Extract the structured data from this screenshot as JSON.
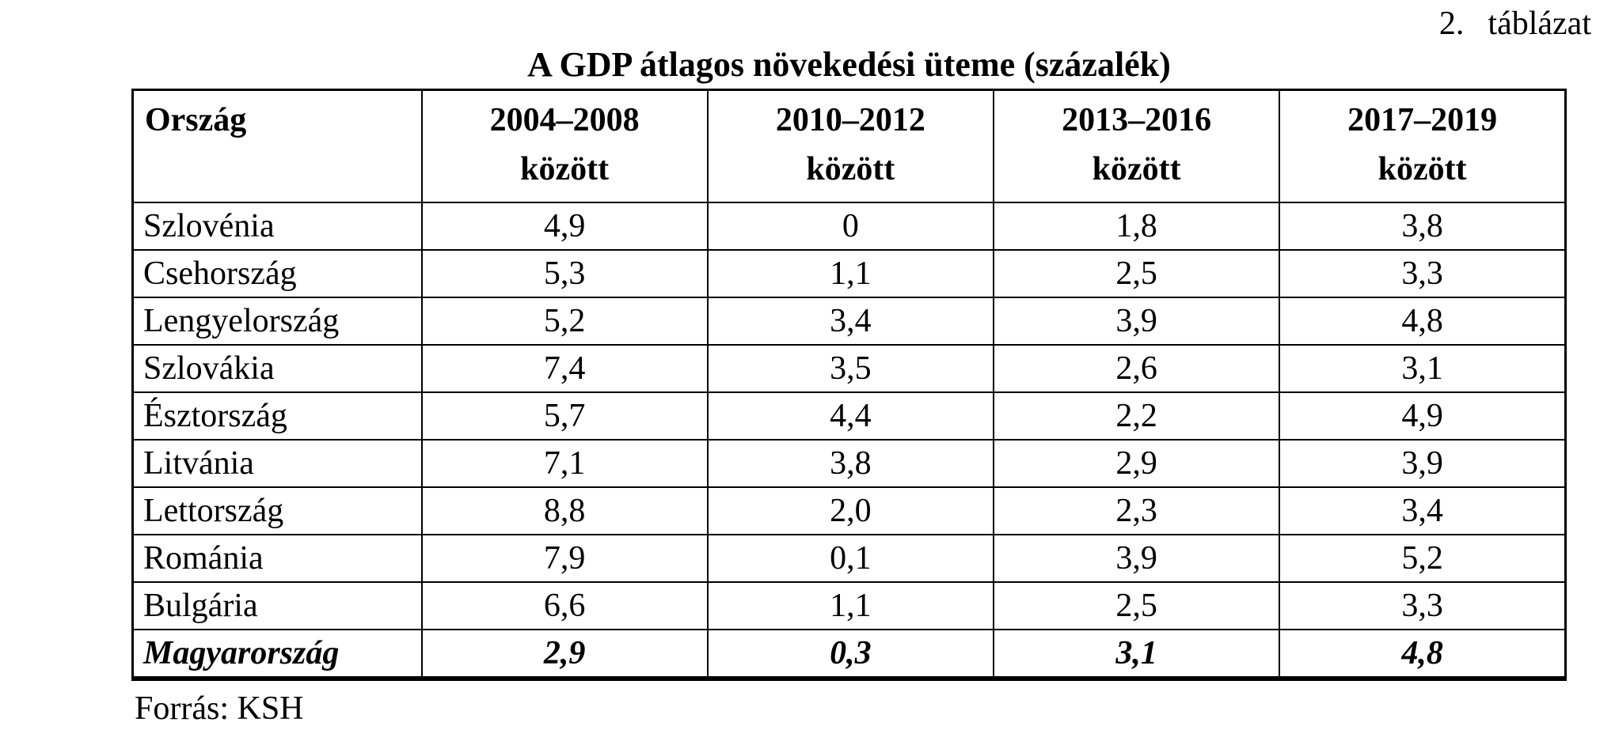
{
  "caption": {
    "number": "2.",
    "label": "táblázat"
  },
  "title": "A GDP átlagos növekedési üteme (százalék)",
  "source": "Forrás: KSH",
  "colors": {
    "text": "#000000",
    "background": "#ffffff",
    "border": "#000000"
  },
  "table": {
    "columns": [
      {
        "title": "Ország",
        "subtitle": ""
      },
      {
        "title": "2004–2008",
        "subtitle": "között"
      },
      {
        "title": "2010–2012",
        "subtitle": "között"
      },
      {
        "title": "2013–2016",
        "subtitle": "között"
      },
      {
        "title": "2017–2019",
        "subtitle": "között"
      }
    ],
    "rows": [
      {
        "country": "Szlovénia",
        "values": [
          "4,9",
          "0",
          "1,8",
          "3,8"
        ]
      },
      {
        "country": "Csehország",
        "values": [
          "5,3",
          "1,1",
          "2,5",
          "3,3"
        ]
      },
      {
        "country": "Lengyelország",
        "values": [
          "5,2",
          "3,4",
          "3,9",
          "4,8"
        ]
      },
      {
        "country": "Szlovákia",
        "values": [
          "7,4",
          "3,5",
          "2,6",
          "3,1"
        ]
      },
      {
        "country": "Észtország",
        "values": [
          "5,7",
          "4,4",
          "2,2",
          "4,9"
        ]
      },
      {
        "country": "Litvánia",
        "values": [
          "7,1",
          "3,8",
          "2,9",
          "3,9"
        ]
      },
      {
        "country": "Lettország",
        "values": [
          "8,8",
          "2,0",
          "2,3",
          "3,4"
        ]
      },
      {
        "country": "Románia",
        "values": [
          "7,9",
          "0,1",
          "3,9",
          "5,2"
        ]
      },
      {
        "country": "Bulgária",
        "values": [
          "6,6",
          "1,1",
          "2,5",
          "3,3"
        ]
      },
      {
        "country": "Magyarország",
        "values": [
          "2,9",
          "0,3",
          "3,1",
          "4,8"
        ],
        "emphasis": true
      }
    ]
  }
}
